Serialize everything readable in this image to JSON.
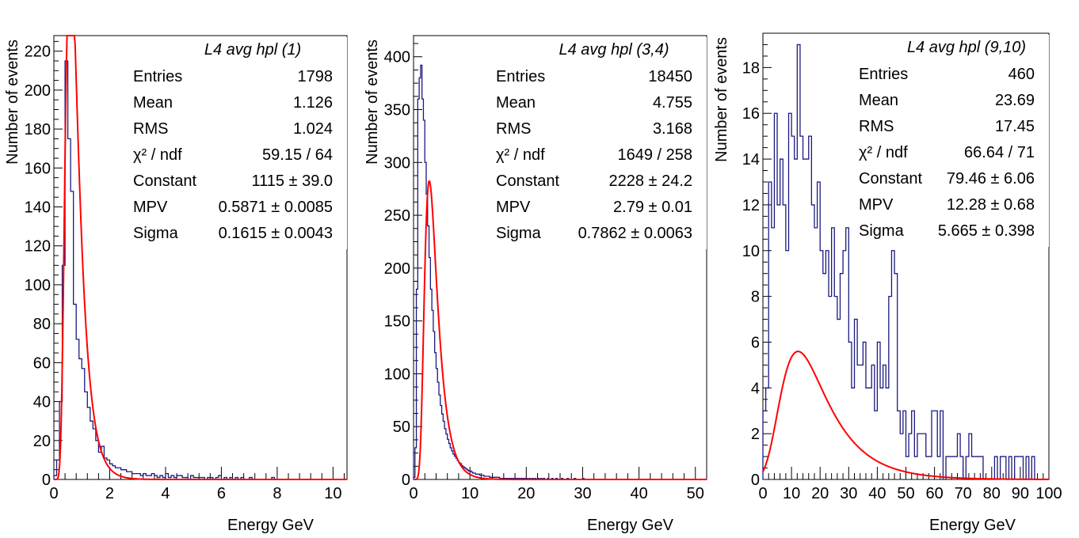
{
  "chart_data": [
    {
      "type": "histogram",
      "title": "L4 avg hpl (1)",
      "xlabel": "Energy GeV",
      "ylabel": "Number of events",
      "xlim": [
        0,
        10.5
      ],
      "ylim": [
        0,
        228
      ],
      "xticks": [
        0,
        2,
        4,
        6,
        8,
        10
      ],
      "yticks": [
        0,
        20,
        40,
        60,
        80,
        100,
        120,
        140,
        160,
        180,
        200,
        220
      ],
      "hist_color": "#1a1a80",
      "fit_color": "#ff0000",
      "bin_width": 0.1,
      "hist_values": [
        2,
        10,
        40,
        110,
        215,
        175,
        148,
        90,
        72,
        62,
        57,
        45,
        37,
        30,
        26,
        20,
        14,
        17,
        11,
        10,
        8,
        7,
        6,
        6,
        5,
        5,
        4,
        4,
        3,
        3,
        3,
        2,
        3,
        2,
        2,
        3,
        2,
        1,
        2,
        1,
        3,
        1,
        2,
        1,
        2,
        2,
        1,
        1,
        0,
        2,
        1,
        1,
        1,
        1,
        0,
        1,
        1,
        0,
        1,
        2,
        0,
        1,
        0,
        1,
        0,
        1,
        0,
        1,
        0,
        0,
        1,
        0,
        0,
        0,
        0,
        0,
        0,
        0,
        1,
        0,
        0,
        0,
        0,
        0,
        0,
        0,
        0,
        0,
        0,
        0,
        0,
        0,
        0,
        0,
        0,
        0,
        0,
        0,
        0,
        0,
        0,
        0,
        0,
        0,
        0
      ],
      "fit": {
        "constant": 1115,
        "mpv": 0.5871,
        "sigma": 0.1615
      },
      "stats": [
        {
          "label": "Entries",
          "value": "1798"
        },
        {
          "label": "Mean",
          "value": "1.126"
        },
        {
          "label": "RMS",
          "value": "1.024"
        },
        {
          "label": "χ² / ndf",
          "value": "59.15 / 64"
        },
        {
          "label": "Constant",
          "value": "1115 ± 39.0"
        },
        {
          "label": "MPV",
          "value": "0.5871 ± 0.0085"
        },
        {
          "label": "Sigma",
          "value": "0.1615 ± 0.0043"
        }
      ]
    },
    {
      "type": "histogram",
      "title": "L4 avg hpl (3,4)",
      "xlabel": "Energy GeV",
      "ylabel": "Number of events",
      "xlim": [
        0,
        52
      ],
      "ylim": [
        0,
        420
      ],
      "xticks": [
        0,
        10,
        20,
        30,
        40,
        50
      ],
      "yticks": [
        0,
        50,
        100,
        150,
        200,
        250,
        300,
        350,
        400
      ],
      "hist_color": "#1a1a80",
      "fit_color": "#ff0000",
      "bin_width": 0.25,
      "hist_values": [
        2,
        30,
        180,
        360,
        380,
        392,
        360,
        340,
        300,
        270,
        240,
        210,
        180,
        160,
        140,
        120,
        105,
        92,
        80,
        70,
        62,
        55,
        48,
        43,
        38,
        34,
        30,
        27,
        24,
        22,
        20,
        18,
        16,
        15,
        13,
        12,
        11,
        10,
        9,
        8,
        8,
        7,
        6,
        6,
        5,
        5,
        5,
        4,
        4,
        4,
        3,
        3,
        3,
        3,
        2,
        2,
        2,
        2,
        2,
        2,
        2,
        1,
        1,
        1,
        1,
        1,
        1,
        1,
        1,
        1,
        1,
        1,
        1,
        1,
        1,
        1,
        1,
        1,
        1,
        1,
        1,
        0,
        1,
        0,
        1,
        0,
        1,
        0,
        1,
        0,
        1,
        0,
        1,
        0,
        0,
        1,
        0,
        0,
        1,
        0,
        0,
        1,
        0,
        0,
        0,
        1,
        0,
        0,
        0,
        1,
        0,
        0,
        0,
        0,
        1,
        0,
        0,
        0,
        0,
        0,
        1,
        0,
        0,
        0,
        0,
        0,
        0,
        0,
        0,
        0,
        0,
        0,
        0,
        0,
        0,
        0,
        0,
        0,
        0,
        0,
        0,
        0,
        0,
        0,
        0,
        0,
        0,
        0,
        0,
        0,
        0,
        0,
        0,
        0,
        0,
        0,
        0,
        0,
        0,
        0,
        0,
        0,
        0,
        0,
        0,
        0,
        0,
        0,
        0,
        0,
        0,
        0,
        0,
        0,
        0,
        0,
        0,
        0,
        0,
        0,
        0,
        0,
        0,
        0,
        0,
        0,
        0,
        0,
        0,
        0,
        0,
        0,
        0,
        0,
        0,
        0,
        0,
        0,
        0,
        0,
        0,
        0,
        0,
        0,
        0,
        0,
        0,
        0
      ],
      "fit": {
        "constant": 2228,
        "mpv": 2.79,
        "sigma": 0.7862
      },
      "stats": [
        {
          "label": "Entries",
          "value": "18450"
        },
        {
          "label": "Mean",
          "value": "4.755"
        },
        {
          "label": "RMS",
          "value": "3.168"
        },
        {
          "label": "χ² / ndf",
          "value": "1649 / 258"
        },
        {
          "label": "Constant",
          "value": "2228 ± 24.2"
        },
        {
          "label": "MPV",
          "value": "2.79 ± 0.01"
        },
        {
          "label": "Sigma",
          "value": "0.7862 ± 0.0063"
        }
      ]
    },
    {
      "type": "histogram",
      "title": "L4 avg hpl (9,10)",
      "xlabel": "Energy GeV",
      "ylabel": "Number of events",
      "xlim": [
        0,
        100
      ],
      "ylim": [
        0,
        19.5
      ],
      "xticks": [
        0,
        10,
        20,
        30,
        40,
        50,
        60,
        70,
        80,
        90,
        100
      ],
      "yticks": [
        0,
        2,
        4,
        6,
        8,
        10,
        12,
        14,
        16,
        18
      ],
      "hist_color": "#1a1a80",
      "fit_color": "#ff0000",
      "bin_width": 1,
      "hist_values": [
        3,
        4,
        13,
        11,
        16,
        12,
        14,
        12,
        10,
        16,
        15,
        14,
        19,
        15,
        14,
        14,
        15,
        12,
        11,
        13,
        10,
        9,
        10,
        8,
        11,
        8,
        7,
        9,
        10,
        11,
        6,
        4,
        7,
        5,
        5,
        6,
        4,
        4,
        5,
        3,
        6,
        4,
        5,
        4,
        8,
        10,
        9,
        3,
        2,
        3,
        1,
        2,
        3,
        1,
        2,
        2,
        2,
        1,
        1,
        3,
        3,
        1,
        3,
        0,
        1,
        1,
        1,
        1,
        2,
        1,
        0,
        1,
        2,
        1,
        1,
        1,
        1,
        0,
        0,
        0,
        0,
        1,
        0,
        1,
        1,
        0,
        1,
        0,
        1,
        1,
        1,
        0,
        1,
        0,
        1,
        0,
        0,
        0,
        0,
        0
      ],
      "fit": {
        "constant": 79.46,
        "mpv": 12.28,
        "sigma": 5.665
      },
      "stats": [
        {
          "label": "Entries",
          "value": "460"
        },
        {
          "label": "Mean",
          "value": "23.69"
        },
        {
          "label": "RMS",
          "value": "17.45"
        },
        {
          "label": "χ² / ndf",
          "value": "66.64 / 71"
        },
        {
          "label": "Constant",
          "value": "79.46 ± 6.06"
        },
        {
          "label": "MPV",
          "value": "12.28 ± 0.68"
        },
        {
          "label": "Sigma",
          "value": "5.665 ± 0.398"
        }
      ]
    }
  ]
}
